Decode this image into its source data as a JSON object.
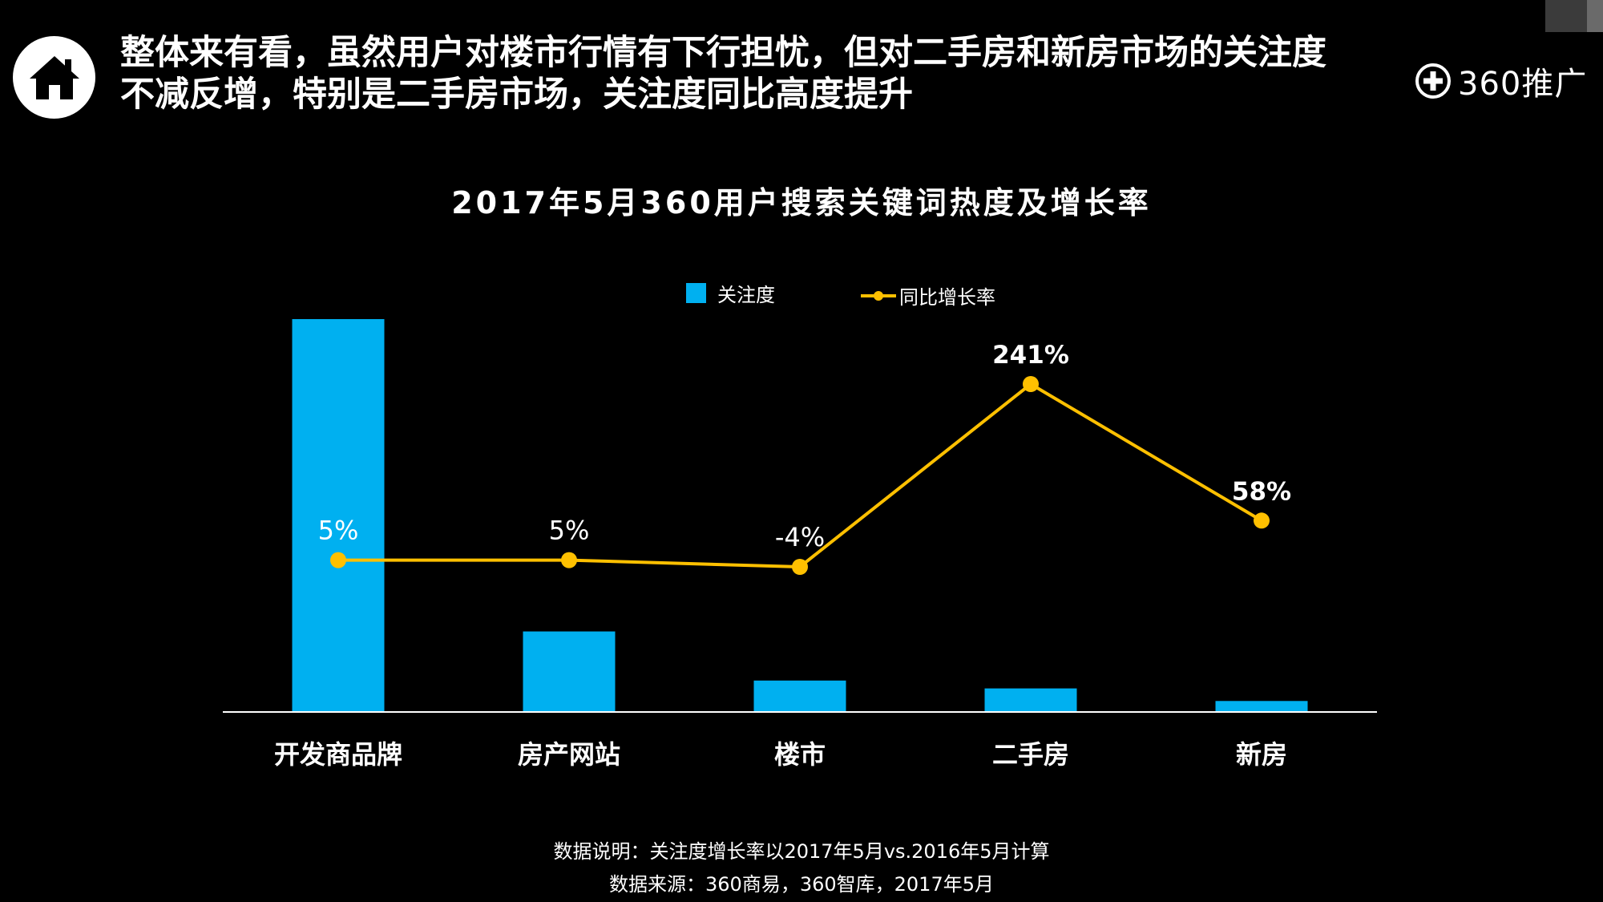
{
  "header": {
    "title_line1": "整体来有看，虽然用户对楼市行情有下行担忧，但对二手房和新房市场的关注度",
    "title_line2": "不减反增，特别是二手房市场，关注度同比高度提升",
    "brand": "360推广",
    "home_icon": "home-icon"
  },
  "footer": {
    "note": "数据说明：关注度增长率以2017年5月vs.2016年5月计算",
    "source": "数据来源：360商易，360智库，2017年5月"
  },
  "colors": {
    "bar": "#00b0f0",
    "line": "#ffc000",
    "background": "#000000"
  },
  "chart_data": {
    "type": "bar",
    "title": "2017年5月360用户搜索关键词热度及增长率",
    "categories": [
      "开发商品牌",
      "房产网站",
      "楼市",
      "二手房",
      "新房"
    ],
    "series": [
      {
        "name": "关注度",
        "type": "bar",
        "values": [
          100,
          20.5,
          8,
          6,
          2.8
        ]
      },
      {
        "name": "同比增长率",
        "type": "line",
        "values": [
          5,
          5,
          -4,
          241,
          58
        ],
        "labels": [
          "5%",
          "5%",
          "-4%",
          "241%",
          "58%"
        ]
      }
    ],
    "legend": "top",
    "grid": false,
    "xlabel": "",
    "ylabel": ""
  }
}
